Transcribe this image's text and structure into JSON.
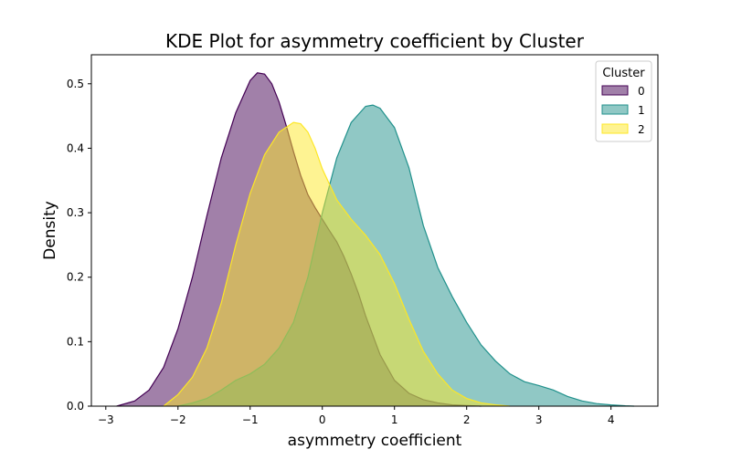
{
  "chart_data": {
    "type": "area",
    "title": "KDE Plot for asymmetry coefficient by Cluster",
    "xlabel": "asymmetry coefficient",
    "ylabel": "Density",
    "xlim": [
      -3.2,
      4.65
    ],
    "ylim": [
      0,
      0.545
    ],
    "xticks": [
      -3,
      -2,
      -1,
      0,
      1,
      2,
      3,
      4
    ],
    "yticks": [
      0.0,
      0.1,
      0.2,
      0.3,
      0.4,
      0.5
    ],
    "legend": {
      "title": "Cluster",
      "placement": "top-right"
    },
    "grid": false,
    "series": [
      {
        "name": "0",
        "fill": "#440154",
        "stroke": "#440154",
        "x": [
          -2.85,
          -2.6,
          -2.4,
          -2.2,
          -2.0,
          -1.8,
          -1.6,
          -1.4,
          -1.2,
          -1.0,
          -0.9,
          -0.8,
          -0.7,
          -0.6,
          -0.5,
          -0.4,
          -0.3,
          -0.2,
          -0.1,
          0.0,
          0.1,
          0.2,
          0.3,
          0.4,
          0.5,
          0.6,
          0.8,
          1.0,
          1.2,
          1.4,
          1.6,
          1.8,
          2.0,
          2.2
        ],
        "y": [
          0.0,
          0.008,
          0.025,
          0.06,
          0.12,
          0.2,
          0.295,
          0.385,
          0.455,
          0.505,
          0.517,
          0.515,
          0.5,
          0.472,
          0.435,
          0.395,
          0.358,
          0.328,
          0.308,
          0.29,
          0.272,
          0.255,
          0.232,
          0.205,
          0.175,
          0.14,
          0.08,
          0.04,
          0.02,
          0.01,
          0.005,
          0.002,
          0.001,
          0.0
        ]
      },
      {
        "name": "1",
        "fill": "#21918c",
        "stroke": "#21918c",
        "x": [
          -2.0,
          -1.8,
          -1.6,
          -1.4,
          -1.2,
          -1.0,
          -0.8,
          -0.6,
          -0.4,
          -0.2,
          0.0,
          0.2,
          0.4,
          0.6,
          0.7,
          0.8,
          1.0,
          1.2,
          1.4,
          1.6,
          1.8,
          2.0,
          2.2,
          2.4,
          2.6,
          2.8,
          3.0,
          3.2,
          3.4,
          3.6,
          3.8,
          4.0,
          4.2,
          4.32
        ],
        "y": [
          0.0,
          0.005,
          0.012,
          0.025,
          0.04,
          0.05,
          0.065,
          0.09,
          0.13,
          0.2,
          0.3,
          0.385,
          0.44,
          0.465,
          0.467,
          0.462,
          0.432,
          0.37,
          0.28,
          0.215,
          0.17,
          0.13,
          0.095,
          0.07,
          0.05,
          0.038,
          0.032,
          0.025,
          0.015,
          0.008,
          0.004,
          0.002,
          0.0005,
          0.0
        ]
      },
      {
        "name": "2",
        "fill": "#fde725",
        "stroke": "#fde725",
        "x": [
          -2.2,
          -2.0,
          -1.8,
          -1.6,
          -1.4,
          -1.2,
          -1.0,
          -0.8,
          -0.6,
          -0.4,
          -0.3,
          -0.2,
          -0.1,
          0.0,
          0.2,
          0.4,
          0.6,
          0.8,
          1.0,
          1.2,
          1.4,
          1.6,
          1.8,
          2.0,
          2.2,
          2.4,
          2.6
        ],
        "y": [
          0.0,
          0.018,
          0.045,
          0.09,
          0.16,
          0.25,
          0.33,
          0.39,
          0.425,
          0.44,
          0.438,
          0.425,
          0.4,
          0.368,
          0.32,
          0.29,
          0.265,
          0.235,
          0.19,
          0.135,
          0.085,
          0.05,
          0.025,
          0.012,
          0.005,
          0.002,
          0.0
        ]
      }
    ]
  }
}
